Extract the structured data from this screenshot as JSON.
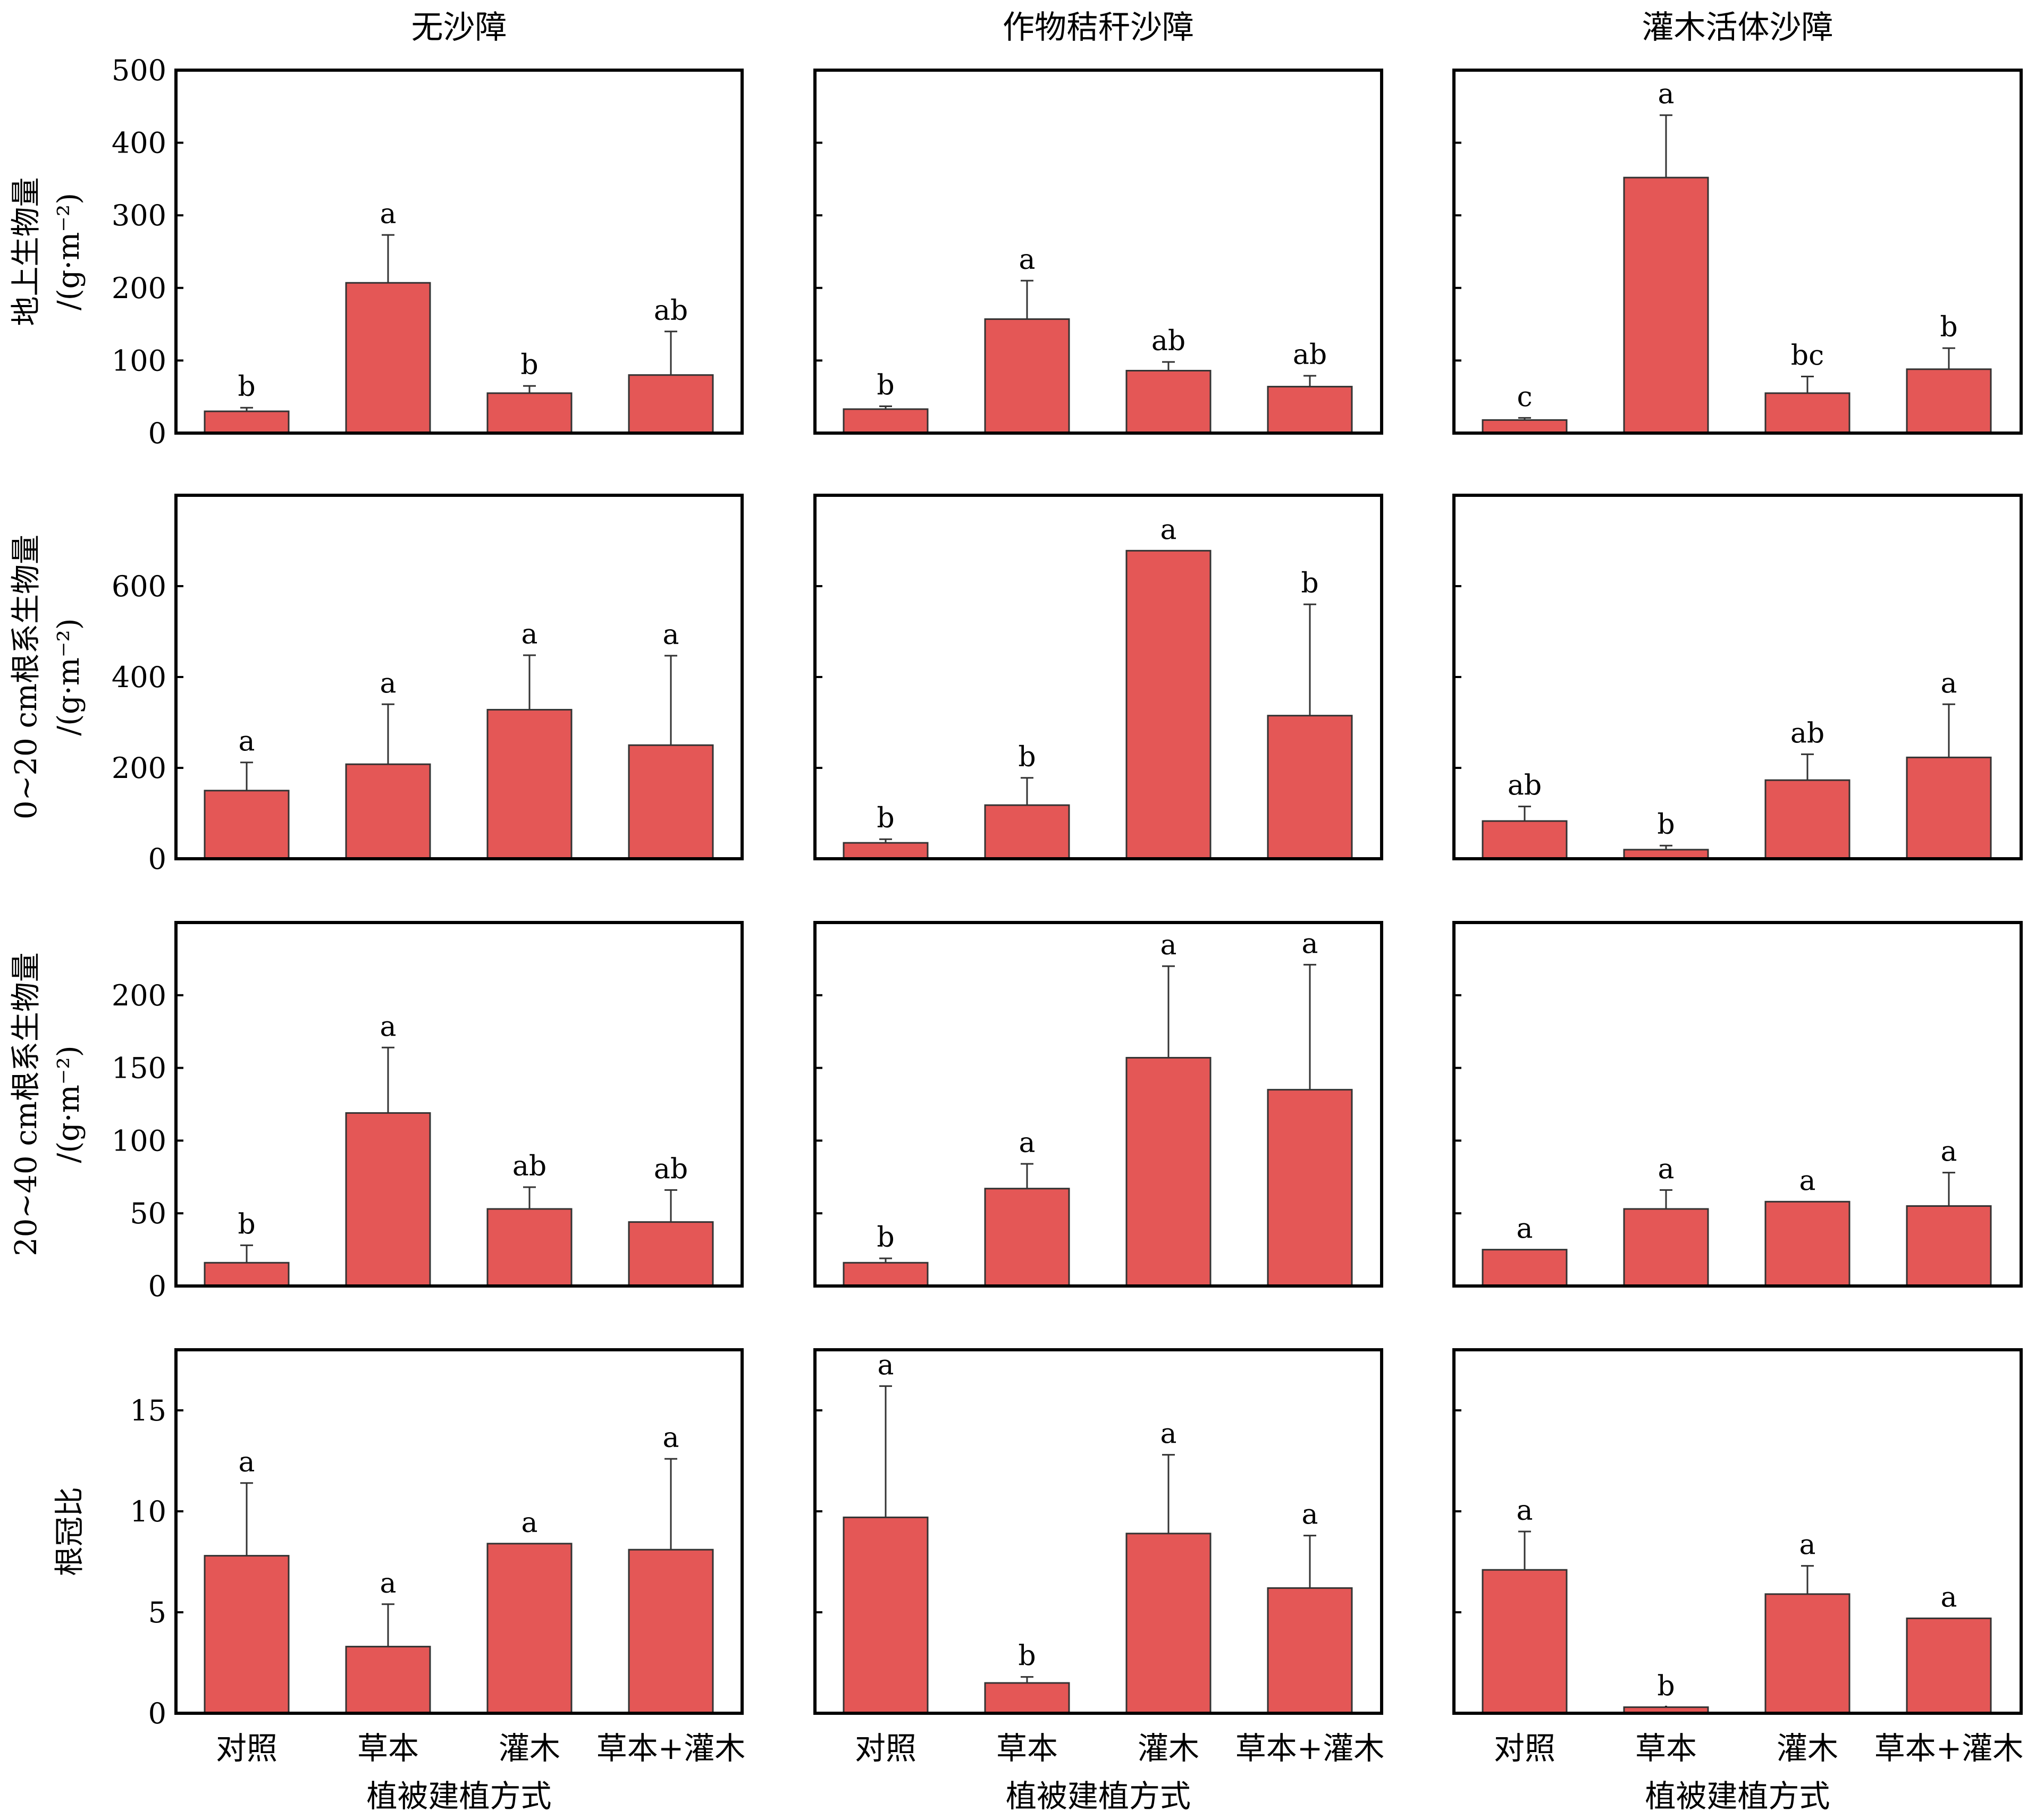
{
  "chart_data": {
    "type": "bar",
    "color": "#E45756",
    "columns": [
      "无沙障",
      "作物秸秆沙障",
      "灌木活体沙障"
    ],
    "categories": [
      "对照",
      "草本",
      "灌木",
      "草本+灌木"
    ],
    "xlabel": "植被建植方式",
    "rows": [
      {
        "ylabel": [
          "地上生物量",
          "/(g·m⁻²)"
        ],
        "ylim": [
          0,
          500
        ],
        "yticks": [
          0,
          100,
          200,
          300,
          400,
          500
        ],
        "panels": [
          {
            "values": [
              30,
              207,
              55,
              80
            ],
            "errors": [
              5,
              66,
              10,
              60
            ],
            "letters": [
              "b",
              "a",
              "b",
              "ab"
            ]
          },
          {
            "values": [
              33,
              157,
              86,
              64
            ],
            "errors": [
              4,
              53,
              12,
              15
            ],
            "letters": [
              "b",
              "a",
              "ab",
              "ab"
            ]
          },
          {
            "values": [
              18,
              352,
              55,
              88
            ],
            "errors": [
              3,
              86,
              23,
              29
            ],
            "letters": [
              "c",
              "a",
              "bc",
              "b"
            ]
          }
        ]
      },
      {
        "ylabel": [
          "0~20 cm根系生物量",
          "/(g·m⁻²)"
        ],
        "ylim": [
          0,
          800
        ],
        "yticks": [
          0,
          200,
          400,
          600
        ],
        "panels": [
          {
            "values": [
              150,
              208,
              328,
              250
            ],
            "errors": [
              62,
              132,
              120,
              197
            ],
            "letters": [
              "a",
              "a",
              "a",
              "a"
            ]
          },
          {
            "values": [
              35,
              118,
              678,
              315
            ],
            "errors": [
              8,
              60,
              0,
              245
            ],
            "letters": [
              "b",
              "b",
              "a",
              "b"
            ]
          },
          {
            "values": [
              83,
              20,
              173,
              223
            ],
            "errors": [
              32,
              9,
              57,
              117
            ],
            "letters": [
              "ab",
              "b",
              "ab",
              "a"
            ]
          }
        ]
      },
      {
        "ylabel": [
          "20~40 cm根系生物量",
          "/(g·m⁻²)"
        ],
        "ylim": [
          0,
          250
        ],
        "yticks": [
          0,
          50,
          100,
          150,
          200
        ],
        "panels": [
          {
            "values": [
              16,
              119,
              53,
              44
            ],
            "errors": [
              12,
              45,
              15,
              22
            ],
            "letters": [
              "b",
              "a",
              "ab",
              "ab"
            ]
          },
          {
            "values": [
              16,
              67,
              157,
              135
            ],
            "errors": [
              3,
              17,
              63,
              86
            ],
            "letters": [
              "b",
              "a",
              "a",
              "a"
            ]
          },
          {
            "values": [
              25,
              53,
              58,
              55
            ],
            "errors": [
              0,
              13,
              0,
              23
            ],
            "letters": [
              "a",
              "a",
              "a",
              "a"
            ]
          }
        ]
      },
      {
        "ylabel": [
          "根冠比"
        ],
        "ylim": [
          0,
          18
        ],
        "yticks": [
          0,
          5,
          10,
          15
        ],
        "panels": [
          {
            "values": [
              7.8,
              3.3,
              8.4,
              8.1
            ],
            "errors": [
              3.6,
              2.1,
              0,
              4.5
            ],
            "letters": [
              "a",
              "a",
              "a",
              "a"
            ]
          },
          {
            "values": [
              9.7,
              1.5,
              8.9,
              6.2
            ],
            "errors": [
              6.5,
              0.3,
              3.9,
              2.6
            ],
            "letters": [
              "a",
              "b",
              "a",
              "a"
            ]
          },
          {
            "values": [
              7.1,
              0.3,
              5.9,
              4.7
            ],
            "errors": [
              1.9,
              0,
              1.4,
              0
            ],
            "letters": [
              "a",
              "b",
              "a",
              "a"
            ]
          }
        ]
      }
    ]
  }
}
